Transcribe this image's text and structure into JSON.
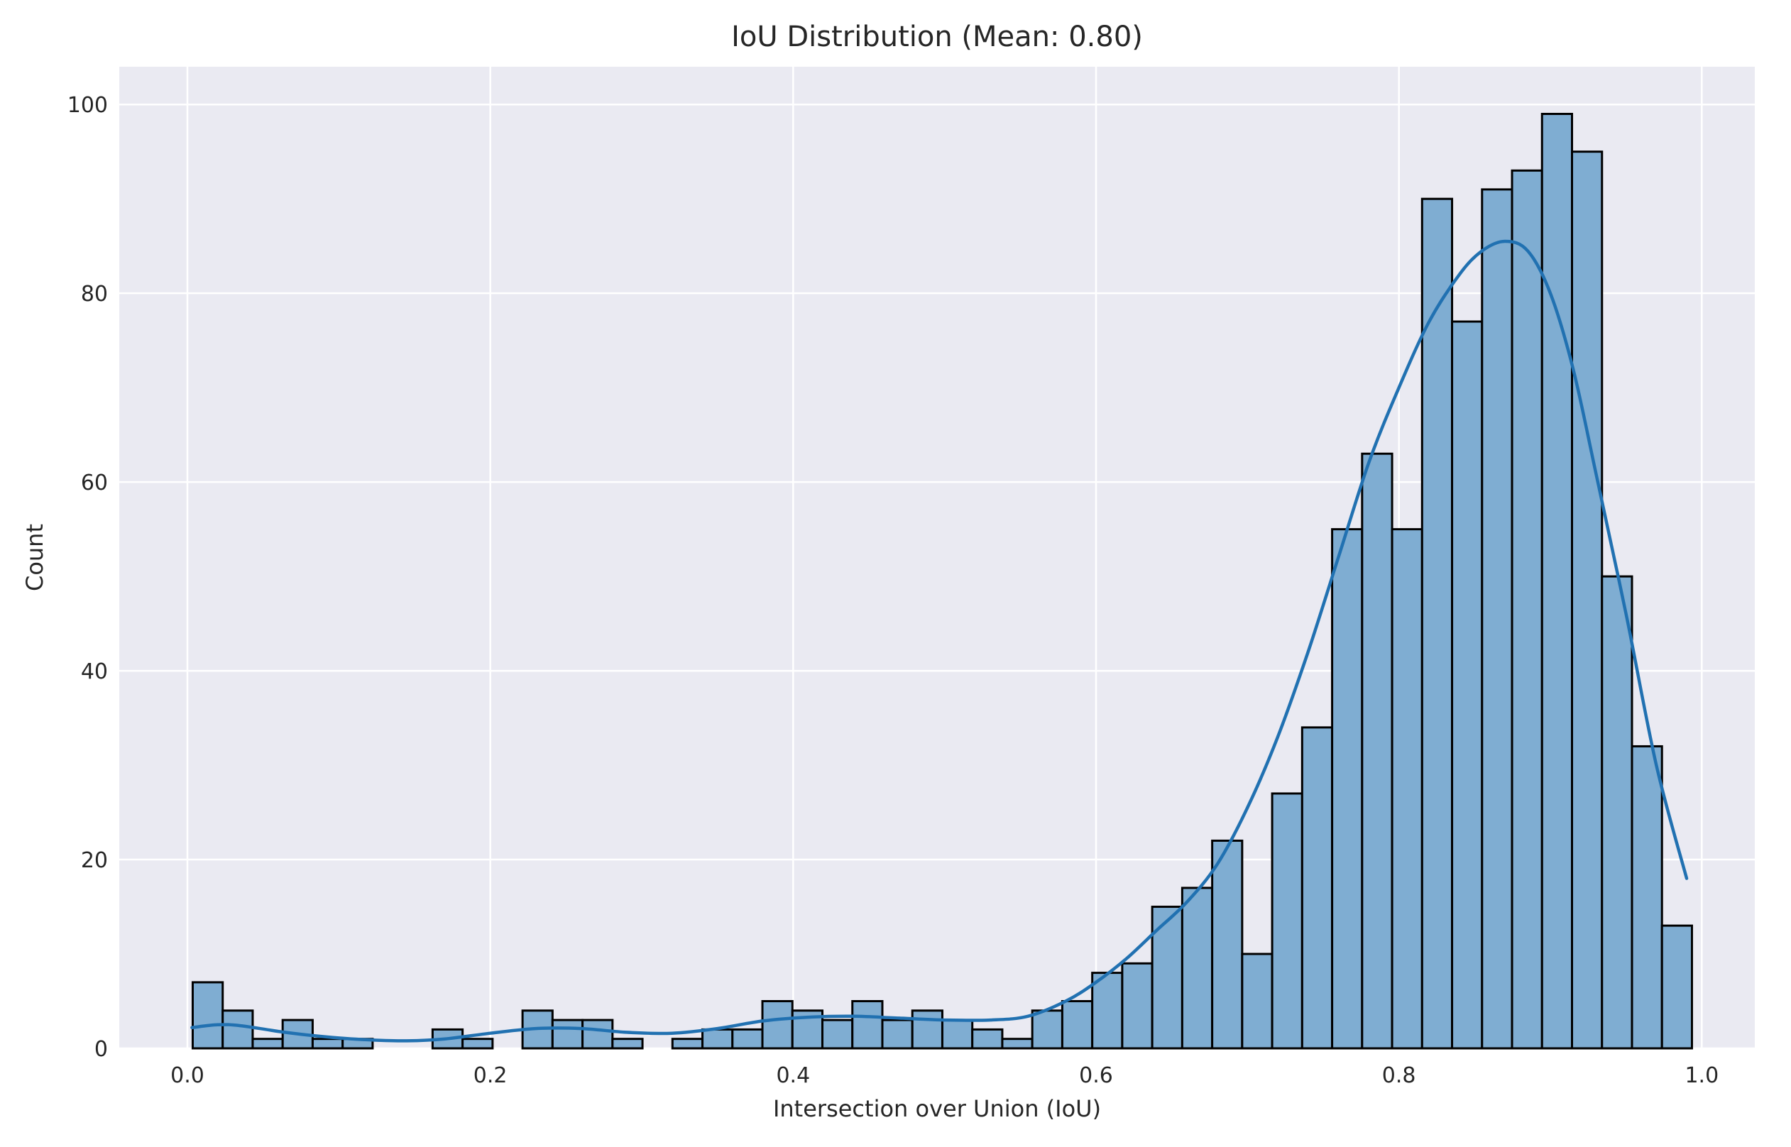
{
  "chart_data": {
    "type": "bar",
    "title": "IoU Distribution (Mean: 0.80)",
    "xlabel": "Intersection over Union (IoU)",
    "ylabel": "Count",
    "xlim": [
      -0.045,
      1.035
    ],
    "ylim": [
      0,
      104
    ],
    "xticks": [
      0.0,
      0.2,
      0.4,
      0.6,
      0.8,
      1.0
    ],
    "xtick_labels": [
      "0.0",
      "0.2",
      "0.4",
      "0.6",
      "0.8",
      "1.0"
    ],
    "yticks": [
      0,
      20,
      40,
      60,
      80,
      100
    ],
    "ytick_labels": [
      "0",
      "20",
      "40",
      "60",
      "80",
      "100"
    ],
    "grid": true,
    "bin_start": 0.0035,
    "bin_width": 0.0198,
    "counts": [
      7,
      4,
      1,
      3,
      1,
      1,
      0,
      0,
      2,
      1,
      0,
      4,
      3,
      3,
      1,
      0,
      1,
      2,
      2,
      5,
      4,
      3,
      5,
      3,
      4,
      3,
      2,
      1,
      4,
      5,
      8,
      9,
      15,
      17,
      22,
      10,
      27,
      34,
      55,
      63,
      55,
      90,
      77,
      91,
      93,
      99,
      95,
      50,
      32,
      13
    ],
    "kde_x": [
      0.003,
      0.02,
      0.035,
      0.06,
      0.08,
      0.1,
      0.12,
      0.145,
      0.17,
      0.2,
      0.23,
      0.26,
      0.29,
      0.32,
      0.35,
      0.38,
      0.41,
      0.44,
      0.47,
      0.5,
      0.53,
      0.555,
      0.58,
      0.6,
      0.62,
      0.64,
      0.66,
      0.68,
      0.7,
      0.72,
      0.74,
      0.76,
      0.78,
      0.8,
      0.82,
      0.84,
      0.855,
      0.87,
      0.885,
      0.9,
      0.915,
      0.93,
      0.95,
      0.97,
      0.99
    ],
    "kde_y": [
      2.2,
      2.5,
      2.4,
      1.8,
      1.4,
      1.1,
      0.9,
      0.8,
      1.0,
      1.6,
      2.1,
      2.1,
      1.7,
      1.6,
      2.1,
      2.9,
      3.3,
      3.4,
      3.2,
      3.0,
      3.0,
      3.4,
      5.0,
      7.0,
      9.5,
      12.5,
      15.5,
      19.5,
      25.5,
      33.0,
      42.0,
      52.0,
      62.0,
      70.0,
      77.0,
      82.0,
      84.5,
      85.5,
      84.5,
      80.0,
      72.0,
      61.0,
      46.0,
      30.0,
      18.0
    ],
    "bar_color": "#7FADD2",
    "bar_edge_color": "#000000",
    "kde_color": "#2171B1",
    "plot_background": "#EAEAF2",
    "grid_color": "#FFFFFF"
  }
}
